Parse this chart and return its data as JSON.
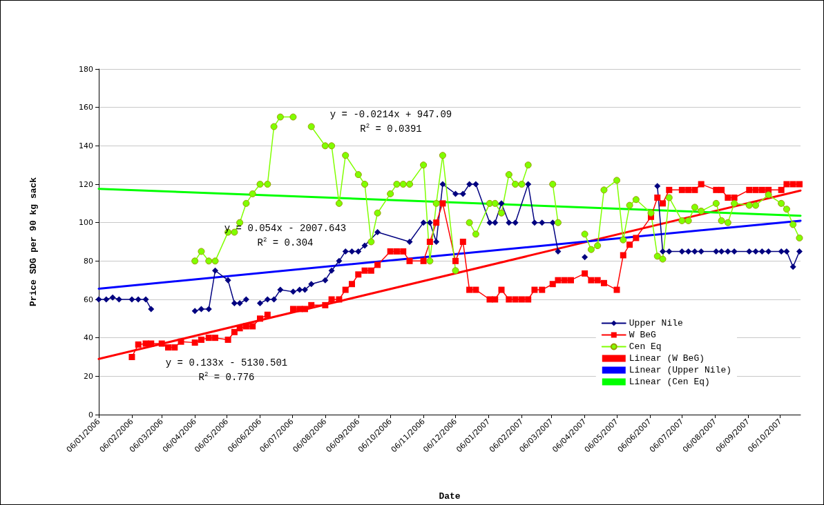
{
  "chart_data": {
    "type": "line",
    "xlabel": "Date",
    "ylabel": "Price SDG per 90 kg sack",
    "xlim": [
      "2006-01-06",
      "2007-10-25"
    ],
    "ylim": [
      0,
      180
    ],
    "yticks": [
      0,
      20,
      40,
      60,
      80,
      100,
      120,
      140,
      160,
      180
    ],
    "xticks": [
      {
        "value": "2006-01-06",
        "label": "06/01/2006"
      },
      {
        "value": "2006-02-06",
        "label": "06/02/2006"
      },
      {
        "value": "2006-03-06",
        "label": "06/03/2006"
      },
      {
        "value": "2006-04-06",
        "label": "06/04/2006"
      },
      {
        "value": "2006-05-06",
        "label": "06/05/2006"
      },
      {
        "value": "2006-06-06",
        "label": "06/06/2006"
      },
      {
        "value": "2006-07-06",
        "label": "06/07/2006"
      },
      {
        "value": "2006-08-06",
        "label": "06/08/2006"
      },
      {
        "value": "2006-09-06",
        "label": "06/09/2006"
      },
      {
        "value": "2006-10-06",
        "label": "06/10/2006"
      },
      {
        "value": "2006-11-06",
        "label": "06/11/2006"
      },
      {
        "value": "2006-12-06",
        "label": "06/12/2006"
      },
      {
        "value": "2007-01-06",
        "label": "06/01/2007"
      },
      {
        "value": "2007-02-06",
        "label": "06/02/2007"
      },
      {
        "value": "2007-03-06",
        "label": "06/03/2007"
      },
      {
        "value": "2007-04-06",
        "label": "06/04/2007"
      },
      {
        "value": "2007-05-06",
        "label": "06/05/2007"
      },
      {
        "value": "2007-06-06",
        "label": "06/06/2007"
      },
      {
        "value": "2007-07-06",
        "label": "06/07/2007"
      },
      {
        "value": "2007-08-06",
        "label": "06/08/2007"
      },
      {
        "value": "2007-09-06",
        "label": "06/09/2007"
      },
      {
        "value": "2007-10-06",
        "label": "06/10/2007"
      }
    ],
    "grid": "y",
    "legend": "bottom right",
    "series": [
      {
        "name": "Upper Nile",
        "color": "#000080",
        "marker": "diamond",
        "x": [
          "2006-01-06",
          "2006-01-13",
          "2006-01-19",
          "2006-01-25",
          "2006-02-06",
          "2006-02-12",
          "2006-02-19",
          "2006-02-24",
          "2006-03-06",
          "2006-04-06",
          "2006-04-12",
          "2006-04-19",
          "2006-04-25",
          "2006-05-07",
          "2006-05-13",
          "2006-05-18",
          "2006-05-24",
          "2006-05-30",
          "2006-06-06",
          "2006-06-13",
          "2006-06-19",
          "2006-06-25",
          "2006-07-07",
          "2006-07-13",
          "2006-07-18",
          "2006-07-24",
          "2006-08-06",
          "2006-08-12",
          "2006-08-19",
          "2006-08-25",
          "2006-08-31",
          "2006-09-06",
          "2006-09-12",
          "2006-09-24",
          "2006-10-24",
          "2006-11-06",
          "2006-11-12",
          "2006-11-18",
          "2006-11-24",
          "2006-12-06",
          "2006-12-13",
          "2006-12-19",
          "2006-12-25",
          "2007-01-07",
          "2007-01-12",
          "2007-01-18",
          "2007-01-25",
          "2007-01-31",
          "2007-02-12",
          "2007-02-18",
          "2007-02-25",
          "2007-03-07",
          "2007-03-12",
          "2007-03-18",
          "2007-04-06",
          "2007-04-12",
          "2007-06-13",
          "2007-06-18",
          "2007-06-24",
          "2007-07-06",
          "2007-07-12",
          "2007-07-18",
          "2007-07-24",
          "2007-08-07",
          "2007-08-12",
          "2007-08-18",
          "2007-08-24",
          "2007-09-07",
          "2007-09-13",
          "2007-09-19",
          "2007-09-25",
          "2007-10-07",
          "2007-10-12",
          "2007-10-18",
          "2007-10-24"
        ],
        "values": [
          60,
          60,
          61,
          60,
          60,
          60,
          60,
          55,
          null,
          54,
          55,
          55,
          75,
          70,
          58,
          58,
          60,
          null,
          58,
          60,
          60,
          65,
          64,
          65,
          65,
          68,
          70,
          75,
          80,
          85,
          85,
          85,
          88,
          95,
          90,
          100,
          100,
          90,
          120,
          115,
          115,
          120,
          120,
          100,
          100,
          110,
          100,
          100,
          120,
          100,
          100,
          100,
          85,
          null,
          82,
          null,
          119,
          85,
          85,
          85,
          85,
          85,
          85,
          85,
          85,
          85,
          85,
          85,
          85,
          85,
          85,
          85,
          85,
          77,
          85
        ]
      },
      {
        "name": "W BeG",
        "color": "#ff0000",
        "marker": "square",
        "x": [
          "2006-02-06",
          "2006-02-12",
          "2006-02-19",
          "2006-02-24",
          "2006-03-06",
          "2006-03-12",
          "2006-03-18",
          "2006-03-24",
          "2006-04-06",
          "2006-04-12",
          "2006-04-19",
          "2006-04-25",
          "2006-05-07",
          "2006-05-13",
          "2006-05-18",
          "2006-05-24",
          "2006-05-30",
          "2006-06-06",
          "2006-06-13",
          "2006-06-19",
          "2006-07-07",
          "2006-07-13",
          "2006-07-18",
          "2006-07-24",
          "2006-08-06",
          "2006-08-12",
          "2006-08-19",
          "2006-08-25",
          "2006-08-31",
          "2006-09-06",
          "2006-09-12",
          "2006-09-18",
          "2006-09-24",
          "2006-10-06",
          "2006-10-12",
          "2006-10-18",
          "2006-10-24",
          "2006-11-06",
          "2006-11-12",
          "2006-11-18",
          "2006-11-24",
          "2006-12-06",
          "2006-12-13",
          "2006-12-19",
          "2006-12-25",
          "2007-01-07",
          "2007-01-12",
          "2007-01-18",
          "2007-01-25",
          "2007-01-31",
          "2007-02-06",
          "2007-02-12",
          "2007-02-18",
          "2007-02-25",
          "2007-03-07",
          "2007-03-12",
          "2007-03-18",
          "2007-03-24",
          "2007-04-06",
          "2007-04-12",
          "2007-04-18",
          "2007-04-24",
          "2007-05-06",
          "2007-05-12",
          "2007-05-18",
          "2007-05-24",
          "2007-06-07",
          "2007-06-13",
          "2007-06-18",
          "2007-06-24",
          "2007-07-06",
          "2007-07-12",
          "2007-07-18",
          "2007-07-24",
          "2007-08-07",
          "2007-08-12",
          "2007-08-18",
          "2007-08-24",
          "2007-09-07",
          "2007-09-13",
          "2007-09-19",
          "2007-09-25",
          "2007-10-07",
          "2007-10-12",
          "2007-10-18",
          "2007-10-24"
        ],
        "values": [
          30,
          36.5,
          37,
          37,
          37,
          35,
          35,
          38,
          37.5,
          39,
          40,
          40,
          39,
          43,
          45,
          46,
          46,
          50,
          52,
          null,
          55,
          55,
          55,
          57,
          57,
          60,
          60,
          65,
          68,
          73,
          75,
          75,
          78,
          85,
          85,
          85,
          80,
          80,
          90,
          100,
          110,
          80,
          90,
          65,
          65,
          60,
          60,
          65,
          60,
          60,
          60,
          60,
          65,
          65,
          68,
          70,
          70,
          70,
          73.5,
          70,
          70,
          68.5,
          65,
          83,
          88.5,
          92,
          103,
          113,
          110,
          117,
          117,
          117,
          117,
          120,
          117,
          117,
          113,
          113,
          117,
          117,
          117,
          117,
          117,
          120,
          120,
          120
        ]
      },
      {
        "name": "Cen Eq",
        "color": "#80ff00",
        "marker": "circle",
        "x": [
          "2006-04-06",
          "2006-04-12",
          "2006-04-19",
          "2006-04-25",
          "2006-05-07",
          "2006-05-13",
          "2006-05-18",
          "2006-05-24",
          "2006-05-30",
          "2006-06-06",
          "2006-06-13",
          "2006-06-19",
          "2006-06-25",
          "2006-07-07",
          "2006-07-13",
          "2006-07-24",
          "2006-08-06",
          "2006-08-12",
          "2006-08-19",
          "2006-08-25",
          "2006-09-06",
          "2006-09-12",
          "2006-09-18",
          "2006-09-24",
          "2006-10-06",
          "2006-10-12",
          "2006-10-18",
          "2006-10-24",
          "2006-11-06",
          "2006-11-12",
          "2006-11-18",
          "2006-11-24",
          "2006-12-06",
          "2006-12-13",
          "2006-12-19",
          "2006-12-25",
          "2007-01-07",
          "2007-01-12",
          "2007-01-18",
          "2007-01-25",
          "2007-01-31",
          "2007-02-06",
          "2007-02-12",
          "2007-02-18",
          "2007-03-07",
          "2007-03-12",
          "2007-03-18",
          "2007-04-06",
          "2007-04-12",
          "2007-04-18",
          "2007-04-24",
          "2007-05-06",
          "2007-05-12",
          "2007-05-18",
          "2007-05-24",
          "2007-06-07",
          "2007-06-13",
          "2007-06-18",
          "2007-06-24",
          "2007-07-06",
          "2007-07-12",
          "2007-07-18",
          "2007-07-24",
          "2007-08-07",
          "2007-08-12",
          "2007-08-18",
          "2007-08-24",
          "2007-09-07",
          "2007-09-13",
          "2007-09-25",
          "2007-10-07",
          "2007-10-12",
          "2007-10-18",
          "2007-10-24"
        ],
        "values": [
          80,
          85,
          80,
          80,
          95,
          95,
          100,
          110,
          115,
          120,
          120,
          150,
          155,
          155,
          null,
          150,
          140,
          140,
          110,
          135,
          125,
          120,
          90,
          105,
          115,
          120,
          120,
          120,
          130,
          80,
          110,
          135,
          75,
          null,
          100,
          94,
          110,
          110,
          105,
          125,
          120,
          120,
          130,
          null,
          120,
          100,
          null,
          94,
          86,
          88,
          117,
          122,
          91,
          109,
          112,
          105,
          82.5,
          81,
          113,
          101,
          101,
          108,
          106,
          110,
          101,
          100,
          110,
          109,
          109,
          114.5,
          110,
          107,
          99,
          92
        ]
      },
      {
        "name": "Linear (W BeG)",
        "color": "#ff0000",
        "marker": "none",
        "x": [
          "2006-01-06",
          "2007-10-25"
        ],
        "values": [
          29,
          116.7
        ]
      },
      {
        "name": "Linear (Upper Nile)",
        "color": "#0000ff",
        "marker": "none",
        "x": [
          "2006-01-06",
          "2007-10-25"
        ],
        "values": [
          65.6,
          101
        ]
      },
      {
        "name": "Linear (Cen Eq)",
        "color": "#00ff00",
        "marker": "none",
        "x": [
          "2006-01-06",
          "2007-10-25"
        ],
        "values": [
          117.6,
          103.6
        ]
      }
    ],
    "annotations": [
      "y = 0.133x - 5130.501",
      "R$^{2}$ = 0.776",
      "y = 0.054x - 2007.643",
      "R$^{2}$ = 0.304",
      "y = -0.0214x + 947.09",
      "R$^{2}$ = 0.0391"
    ]
  }
}
